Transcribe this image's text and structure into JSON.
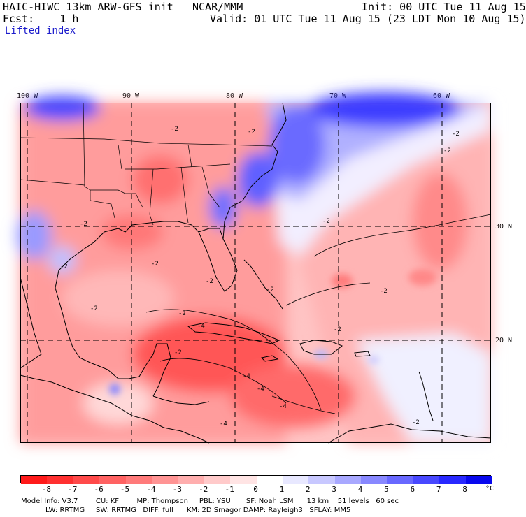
{
  "header": {
    "title": "HAIC-HIWC 13km ARW-GFS init",
    "org": "NCAR/MMM",
    "init": "Init: 00 UTC Tue 11 Aug 15",
    "fcst": "Fcst:    1 h",
    "valid": "Valid: 01 UTC Tue 11 Aug 15 (23 LDT Mon 10 Aug 15)",
    "field": "Lifted index"
  },
  "axes": {
    "lon_labels": [
      "100 W",
      "90 W",
      "80 W",
      "70 W",
      "60 W"
    ],
    "lat_labels": [
      "30 N",
      "20 N"
    ]
  },
  "contour_labels": [
    "-2",
    "-2",
    "-2",
    "-2",
    "-2",
    "-2",
    "-2",
    "-2",
    "-2",
    "-2",
    "-2",
    "-2",
    "-2",
    "-2",
    "-2",
    "-2",
    "-4",
    "-4",
    "-4",
    "-4",
    "-4"
  ],
  "colorbar": {
    "ticks": [
      "-8",
      "-7",
      "-6",
      "-5",
      "-4",
      "-3",
      "-2",
      "-1",
      "0",
      "1",
      "2",
      "3",
      "4",
      "5",
      "6",
      "7",
      "8"
    ],
    "unit": "°C",
    "colors": [
      "#ff1a1a",
      "#ff3030",
      "#ff4a4a",
      "#ff6262",
      "#ff7a7a",
      "#ff9494",
      "#ffaeae",
      "#ffcaca",
      "#ffe4e4",
      "#ffffff",
      "#e8e8ff",
      "#c8c8ff",
      "#a8a8ff",
      "#8888ff",
      "#6868ff",
      "#4848ff",
      "#2828ff",
      "#0808ee"
    ]
  },
  "footer": {
    "line1": "Model Info: V3.7        CU: KF        MP: Thompson     PBL: YSU       SF: Noah LSM      13 km    51 levels   60 sec",
    "line2": "           LW: RRTMG     SW: RRTMG   DIFF: full      KM: 2D Smagor DAMP: Rayleigh3   SFLAY: MM5"
  },
  "colors": {
    "ocean_neutral": "#ffe0e0",
    "strong_unstable": "#ff5a5a",
    "stable": "#5a5aff",
    "label_blue": "#1c1ccc"
  }
}
